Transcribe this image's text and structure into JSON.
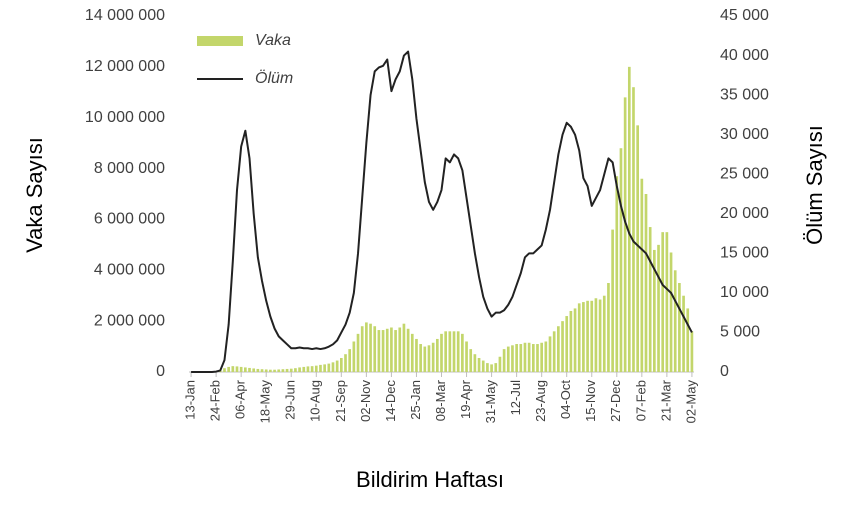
{
  "chart_data": {
    "type": "bar",
    "x_title": "Bildirim Haftası",
    "y_title": "Vaka Sayısı",
    "y2_title": "Ölüm Sayısı",
    "categories": [
      "13-Jan",
      null,
      null,
      null,
      null,
      null,
      "24-Feb",
      null,
      null,
      null,
      null,
      null,
      "06-Apr",
      null,
      null,
      null,
      null,
      null,
      "18-May",
      null,
      null,
      null,
      null,
      null,
      "29-Jun",
      null,
      null,
      null,
      null,
      null,
      "10-Aug",
      null,
      null,
      null,
      null,
      null,
      "21-Sep",
      null,
      null,
      null,
      null,
      null,
      "02-Nov",
      null,
      null,
      null,
      null,
      null,
      "14-Dec",
      null,
      null,
      null,
      null,
      null,
      "25-Jan",
      null,
      null,
      null,
      null,
      null,
      "08-Mar",
      null,
      null,
      null,
      null,
      null,
      "19-Apr",
      null,
      null,
      null,
      null,
      null,
      "31-May",
      null,
      null,
      null,
      null,
      null,
      "12-Jul",
      null,
      null,
      null,
      null,
      null,
      "23-Aug",
      null,
      null,
      null,
      null,
      null,
      "04-Oct",
      null,
      null,
      null,
      null,
      null,
      "15-Nov",
      null,
      null,
      null,
      null,
      null,
      "27-Dec",
      null,
      null,
      null,
      null,
      null,
      "07-Feb",
      null,
      null,
      null,
      null,
      null,
      "21-Mar",
      null,
      null,
      null,
      null,
      null,
      "02-May"
    ],
    "series": [
      {
        "name": "Vaka",
        "type": "bar",
        "axis": "y",
        "color": "#c3d66b",
        "values": [
          0,
          0,
          0,
          0,
          0,
          0,
          10000,
          50000,
          150000,
          200000,
          230000,
          220000,
          200000,
          180000,
          160000,
          140000,
          120000,
          110000,
          100000,
          90000,
          90000,
          100000,
          110000,
          120000,
          130000,
          150000,
          180000,
          200000,
          220000,
          230000,
          250000,
          280000,
          300000,
          330000,
          380000,
          450000,
          550000,
          700000,
          900000,
          1200000,
          1500000,
          1800000,
          1950000,
          1900000,
          1800000,
          1650000,
          1650000,
          1700000,
          1750000,
          1650000,
          1750000,
          1900000,
          1700000,
          1500000,
          1300000,
          1100000,
          1000000,
          1050000,
          1150000,
          1300000,
          1500000,
          1600000,
          1600000,
          1600000,
          1600000,
          1500000,
          1200000,
          900000,
          700000,
          550000,
          450000,
          350000,
          300000,
          350000,
          600000,
          900000,
          1000000,
          1050000,
          1100000,
          1100000,
          1150000,
          1150000,
          1100000,
          1100000,
          1150000,
          1200000,
          1400000,
          1600000,
          1800000,
          2000000,
          2200000,
          2400000,
          2500000,
          2700000,
          2750000,
          2800000,
          2800000,
          2900000,
          2850000,
          3000000,
          3500000,
          5600000,
          7700000,
          8800000,
          10800000,
          12000000,
          11200000,
          9700000,
          7600000,
          7000000,
          5700000,
          4800000,
          5000000,
          5500000,
          5500000,
          4700000,
          4000000,
          3500000,
          3000000,
          2500000,
          1600000
        ]
      },
      {
        "name": "Ölüm",
        "type": "line",
        "axis": "y2",
        "color": "#222222",
        "values": [
          0,
          0,
          0,
          0,
          0,
          0,
          50,
          200,
          1500,
          6000,
          14000,
          23000,
          28500,
          30500,
          27000,
          20000,
          14500,
          11500,
          9000,
          7000,
          5500,
          4500,
          4000,
          3500,
          3000,
          3000,
          3100,
          3000,
          3000,
          2900,
          3000,
          2900,
          3000,
          3200,
          3500,
          4000,
          5000,
          6000,
          7500,
          10000,
          15000,
          22000,
          29000,
          35000,
          38000,
          38500,
          38700,
          39500,
          35500,
          37000,
          38000,
          40000,
          40500,
          37000,
          32000,
          28000,
          24000,
          21500,
          20500,
          21500,
          23000,
          27000,
          26500,
          27500,
          27000,
          25500,
          22000,
          18500,
          15000,
          12000,
          9500,
          8000,
          7000,
          7500,
          7500,
          7800,
          8500,
          9500,
          11000,
          12500,
          14500,
          15000,
          15000,
          15500,
          16000,
          18000,
          20500,
          24000,
          27500,
          30000,
          31500,
          31000,
          30000,
          28000,
          24500,
          23500,
          21000,
          22000,
          23000,
          25000,
          27000,
          26500,
          23500,
          21000,
          19000,
          17500,
          16500,
          16000,
          15500,
          15000,
          14000,
          13000,
          12000,
          11000,
          10500,
          10000,
          9000,
          8000,
          7000,
          6000,
          5000
        ]
      }
    ],
    "ylim": [
      0,
      14000000
    ],
    "yticks": [
      0,
      {
        "value": 2000000,
        "label": "2 000 000"
      },
      {
        "value": 4000000,
        "label": "4 000 000"
      },
      {
        "value": 6000000,
        "label": "6 000 000"
      },
      {
        "value": 8000000,
        "label": "8 000 000"
      },
      {
        "value": 10000000,
        "label": "10 000 000"
      },
      {
        "value": 12000000,
        "label": "12 000 000"
      },
      {
        "value": 14000000,
        "label": "14 000 000"
      }
    ],
    "y2lim": [
      0,
      45000
    ],
    "y2ticks": [
      0,
      {
        "value": 5000,
        "label": "5 000"
      },
      {
        "value": 10000,
        "label": "10 000"
      },
      {
        "value": 15000,
        "label": "15 000"
      },
      {
        "value": 20000,
        "label": "20 000"
      },
      {
        "value": 25000,
        "label": "25 000"
      },
      {
        "value": 30000,
        "label": "30 000"
      },
      {
        "value": 35000,
        "label": "35 000"
      },
      {
        "value": 40000,
        "label": "40 000"
      },
      {
        "value": 45000,
        "label": "45 000"
      }
    ],
    "legend": "top-left"
  }
}
